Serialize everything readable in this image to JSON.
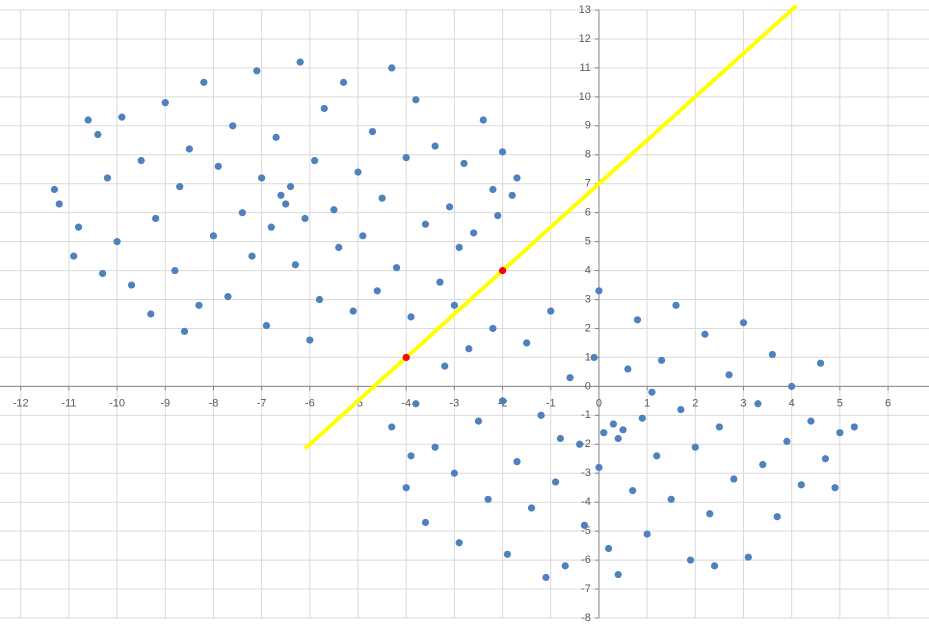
{
  "chart_data": {
    "type": "scatter",
    "xlim": [
      -12.43,
      6.85
    ],
    "ylim": [
      -8,
      13
    ],
    "xticks": [
      -12,
      -11,
      -10,
      -9,
      -8,
      -7,
      -6,
      -5,
      -4,
      -3,
      -2,
      -1,
      0,
      1,
      2,
      3,
      4,
      5,
      6
    ],
    "yticks": [
      -8,
      -7,
      -6,
      -5,
      -4,
      -3,
      -2,
      -1,
      0,
      1,
      2,
      3,
      4,
      5,
      6,
      7,
      8,
      9,
      10,
      11,
      12,
      13
    ],
    "grid": true,
    "series": [
      {
        "color": "#4f81bd",
        "mode": "markers",
        "x": [
          -11.3,
          -11.2,
          -10.8,
          -10.6,
          -10.4,
          -10.9,
          -10.2,
          -10,
          -9.9,
          -9.7,
          -9.5,
          -9.3,
          -9.2,
          -9,
          -8.8,
          -8.7,
          -8.5,
          -8.3,
          -8.2,
          -8,
          -7.9,
          -7.7,
          -7.6,
          -7.4,
          -7.2,
          -7.1,
          -7,
          -6.9,
          -6.8,
          -6.7,
          -6.6,
          -6.5,
          -6.4,
          -6.3,
          -6.2,
          -6.1,
          -6,
          -5.9,
          -5.8,
          -5.7,
          -5.5,
          -5.4,
          -5.3,
          -5.1,
          -5,
          -4.9,
          -4.7,
          -4.6,
          -4.5,
          -4.3,
          -4.2,
          -4,
          -3.9,
          -3.8,
          -3.6,
          -3.4,
          -3.3,
          -3.1,
          -2.9,
          -2.8,
          -2.6,
          -2.4,
          -2.2,
          -2,
          -1.8,
          -1.7,
          -2.1,
          -3,
          -8.6,
          -10.3,
          -4.3,
          -4,
          -3.8,
          -3.6,
          -3.4,
          -3.2,
          -3,
          -2.9,
          -2.7,
          -2.5,
          -2.3,
          -2.2,
          -2,
          -1.9,
          -1.7,
          -1.5,
          -1.4,
          -1.2,
          -1,
          -0.9,
          -0.7,
          -0.6,
          -0.4,
          -0.3,
          -0.1,
          0,
          0.1,
          0.2,
          0.3,
          0.4,
          0.5,
          0.6,
          0.7,
          0.8,
          0.9,
          1,
          1.2,
          1.3,
          1.5,
          1.6,
          1.7,
          1.9,
          2,
          2.2,
          2.3,
          2.5,
          2.7,
          2.8,
          3,
          3.1,
          3.3,
          3.4,
          3.6,
          3.7,
          3.9,
          4,
          4.2,
          4.4,
          4.6,
          4.7,
          4.9,
          5,
          5.3,
          -1.1,
          0.4,
          -3.9,
          2.4,
          1.1,
          -0.8,
          0
        ],
        "values": [
          6.8,
          6.3,
          5.5,
          9.2,
          8.7,
          4.5,
          7.2,
          5,
          9.3,
          3.5,
          7.8,
          2.5,
          5.8,
          9.8,
          4,
          6.9,
          8.2,
          2.8,
          10.5,
          5.2,
          7.6,
          3.1,
          9,
          6,
          4.5,
          10.9,
          7.2,
          2.1,
          5.5,
          8.6,
          6.6,
          6.3,
          6.9,
          4.2,
          11.2,
          5.8,
          1.6,
          7.8,
          3,
          9.6,
          6.1,
          4.8,
          10.5,
          2.6,
          7.4,
          5.2,
          8.8,
          3.3,
          6.5,
          11,
          4.1,
          7.9,
          2.4,
          9.9,
          5.6,
          8.3,
          3.6,
          6.2,
          4.8,
          7.7,
          5.3,
          9.2,
          6.8,
          8.1,
          6.6,
          7.2,
          5.9,
          2.8,
          1.9,
          3.9,
          -1.4,
          -3.5,
          -0.6,
          -4.7,
          -2.1,
          0.7,
          -3,
          -5.4,
          1.3,
          -1.2,
          -3.9,
          2,
          -0.5,
          -5.8,
          -2.6,
          1.5,
          -4.2,
          -1,
          2.6,
          -3.3,
          -6.2,
          0.3,
          -2,
          -4.8,
          1,
          3.3,
          -1.6,
          -5.6,
          -1.3,
          -1.8,
          -1.5,
          0.6,
          -3.6,
          2.3,
          -1.1,
          -5.1,
          -2.4,
          0.9,
          -3.9,
          2.8,
          -0.8,
          -6,
          -2.1,
          1.8,
          -4.4,
          -1.4,
          0.4,
          -3.2,
          2.2,
          -5.9,
          -0.6,
          -2.7,
          1.1,
          -4.5,
          -1.9,
          0,
          -3.4,
          -1.2,
          0.8,
          -2.5,
          -3.5,
          -1.6,
          -1.4,
          -6.6,
          -6.5,
          -2.4,
          -6.2,
          -0.2,
          -1.8,
          -2.8
        ]
      },
      {
        "color": "#ffff00",
        "mode": "line",
        "x": [
          -6.1,
          4.1
        ],
        "values": [
          -2.15,
          13.15
        ]
      },
      {
        "color": "#ff0000",
        "mode": "markers",
        "x": [
          -4,
          -2
        ],
        "values": [
          1,
          4
        ]
      }
    ]
  }
}
